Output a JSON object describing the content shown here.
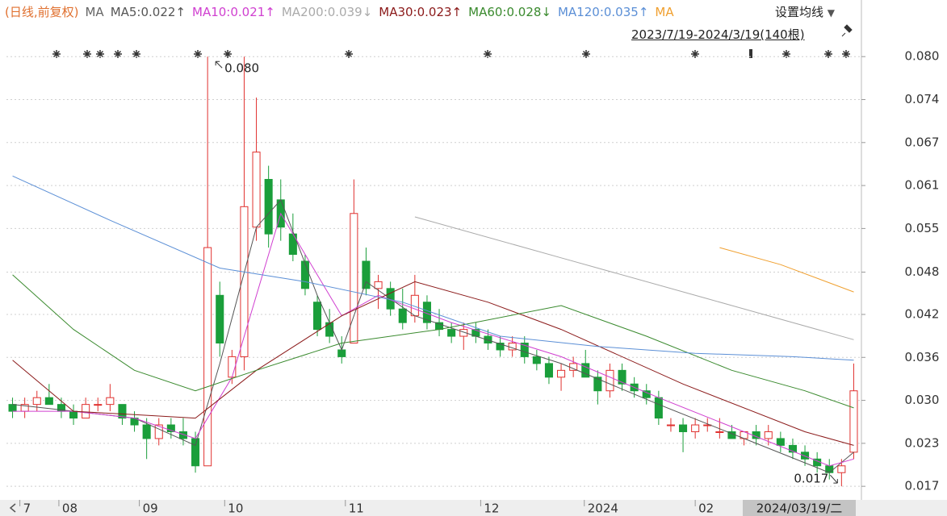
{
  "chart_data": {
    "type": "candlestick",
    "legend_prefix": "(日线,前复权)",
    "legend_ma": "MA",
    "button": "设置均线",
    "range_text": "2023/7/19-2024/3/19(140根)",
    "cursor_label": "2024/03/19/二",
    "up_color": "#e0312f",
    "down_color": "#1a9e3a",
    "grid": true,
    "xlim": [
      -0.5,
      69.5
    ],
    "xticks": [
      {
        "value": 0.6,
        "label": "7"
      },
      {
        "value": 3.8,
        "label": "08"
      },
      {
        "value": 10.4,
        "label": "09"
      },
      {
        "value": 17.4,
        "label": "10"
      },
      {
        "value": 27.3,
        "label": "11"
      },
      {
        "value": 38.4,
        "label": "12"
      },
      {
        "value": 46.9,
        "label": "2024"
      },
      {
        "value": 56,
        "label": "02"
      }
    ],
    "ylim": [
      0.0156,
      0.0883
    ],
    "yticks": [
      {
        "value": 0.08,
        "label": "0.080"
      },
      {
        "value": 0.0737,
        "label": "0.074"
      },
      {
        "value": 0.0674,
        "label": "0.067"
      },
      {
        "value": 0.0611,
        "label": "0.061"
      },
      {
        "value": 0.0548,
        "label": "0.055"
      },
      {
        "value": 0.0484,
        "label": "0.048"
      },
      {
        "value": 0.0422,
        "label": "0.042"
      },
      {
        "value": 0.0359,
        "label": "0.036"
      },
      {
        "value": 0.0296,
        "label": "0.030"
      },
      {
        "value": 0.0233,
        "label": "0.023"
      },
      {
        "value": 0.017,
        "label": "0.017"
      }
    ],
    "annotations": [
      {
        "text": "0.080",
        "x": 16,
        "y": 0.08
      },
      {
        "text": "0.017",
        "x": 68,
        "y": 0.017
      }
    ],
    "candles": [
      [
        0.029,
        0.03,
        0.027,
        0.028
      ],
      [
        0.028,
        0.03,
        0.027,
        0.029
      ],
      [
        0.029,
        0.031,
        0.028,
        0.03
      ],
      [
        0.03,
        0.032,
        0.029,
        0.029
      ],
      [
        0.029,
        0.03,
        0.027,
        0.028
      ],
      [
        0.028,
        0.029,
        0.026,
        0.027
      ],
      [
        0.027,
        0.03,
        0.027,
        0.029
      ],
      [
        0.029,
        0.03,
        0.028,
        0.029
      ],
      [
        0.029,
        0.032,
        0.028,
        0.03
      ],
      [
        0.029,
        0.029,
        0.026,
        0.027
      ],
      [
        0.027,
        0.028,
        0.025,
        0.026
      ],
      [
        0.026,
        0.027,
        0.021,
        0.024
      ],
      [
        0.024,
        0.027,
        0.023,
        0.026
      ],
      [
        0.026,
        0.027,
        0.024,
        0.025
      ],
      [
        0.025,
        0.027,
        0.023,
        0.024
      ],
      [
        0.024,
        0.025,
        0.019,
        0.02
      ],
      [
        0.02,
        0.08,
        0.02,
        0.052
      ],
      [
        0.045,
        0.047,
        0.036,
        0.038
      ],
      [
        0.033,
        0.037,
        0.032,
        0.036
      ],
      [
        0.036,
        0.08,
        0.034,
        0.058
      ],
      [
        0.055,
        0.074,
        0.053,
        0.066
      ],
      [
        0.062,
        0.064,
        0.052,
        0.054
      ],
      [
        0.059,
        0.062,
        0.053,
        0.055
      ],
      [
        0.054,
        0.057,
        0.05,
        0.051
      ],
      [
        0.05,
        0.051,
        0.045,
        0.046
      ],
      [
        0.044,
        0.045,
        0.039,
        0.04
      ],
      [
        0.041,
        0.043,
        0.038,
        0.039
      ],
      [
        0.037,
        0.039,
        0.035,
        0.036
      ],
      [
        0.038,
        0.062,
        0.038,
        0.057
      ],
      [
        0.05,
        0.052,
        0.045,
        0.046
      ],
      [
        0.046,
        0.048,
        0.043,
        0.047
      ],
      [
        0.046,
        0.047,
        0.042,
        0.043
      ],
      [
        0.043,
        0.046,
        0.04,
        0.041
      ],
      [
        0.042,
        0.048,
        0.041,
        0.045
      ],
      [
        0.044,
        0.045,
        0.04,
        0.041
      ],
      [
        0.041,
        0.043,
        0.039,
        0.04
      ],
      [
        0.04,
        0.041,
        0.038,
        0.039
      ],
      [
        0.039,
        0.041,
        0.037,
        0.04
      ],
      [
        0.04,
        0.041,
        0.038,
        0.039
      ],
      [
        0.039,
        0.04,
        0.037,
        0.038
      ],
      [
        0.038,
        0.039,
        0.036,
        0.037
      ],
      [
        0.037,
        0.039,
        0.036,
        0.038
      ],
      [
        0.038,
        0.039,
        0.035,
        0.036
      ],
      [
        0.036,
        0.037,
        0.034,
        0.035
      ],
      [
        0.035,
        0.036,
        0.032,
        0.033
      ],
      [
        0.033,
        0.035,
        0.031,
        0.034
      ],
      [
        0.034,
        0.036,
        0.033,
        0.035
      ],
      [
        0.035,
        0.037,
        0.033,
        0.033
      ],
      [
        0.033,
        0.034,
        0.029,
        0.031
      ],
      [
        0.031,
        0.035,
        0.03,
        0.034
      ],
      [
        0.034,
        0.035,
        0.031,
        0.032
      ],
      [
        0.032,
        0.033,
        0.03,
        0.031
      ],
      [
        0.031,
        0.032,
        0.029,
        0.03
      ],
      [
        0.03,
        0.031,
        0.026,
        0.027
      ],
      [
        0.026,
        0.027,
        0.025,
        0.026
      ],
      [
        0.026,
        0.027,
        0.022,
        0.025
      ],
      [
        0.025,
        0.027,
        0.024,
        0.026
      ],
      [
        0.026,
        0.027,
        0.025,
        0.026
      ],
      [
        0.025,
        0.027,
        0.024,
        0.025
      ],
      [
        0.025,
        0.026,
        0.024,
        0.024
      ],
      [
        0.024,
        0.025,
        0.023,
        0.025
      ],
      [
        0.025,
        0.026,
        0.023,
        0.024
      ],
      [
        0.024,
        0.026,
        0.023,
        0.025
      ],
      [
        0.024,
        0.025,
        0.022,
        0.023
      ],
      [
        0.023,
        0.024,
        0.021,
        0.022
      ],
      [
        0.022,
        0.023,
        0.02,
        0.021
      ],
      [
        0.021,
        0.022,
        0.019,
        0.02
      ],
      [
        0.02,
        0.021,
        0.018,
        0.019
      ],
      [
        0.019,
        0.021,
        0.017,
        0.02
      ],
      [
        0.022,
        0.035,
        0.021,
        0.031
      ]
    ],
    "series": [
      {
        "name": "MA5:0.022↑",
        "color": "#555555",
        "x": [
          0,
          5,
          10,
          15,
          17,
          20,
          22,
          25,
          27,
          29,
          33,
          38,
          45,
          53,
          60,
          67,
          69
        ],
        "values": [
          0.029,
          0.028,
          0.027,
          0.023,
          0.035,
          0.055,
          0.059,
          0.045,
          0.037,
          0.047,
          0.042,
          0.039,
          0.035,
          0.029,
          0.024,
          0.019,
          0.022
        ]
      },
      {
        "name": "MA10:0.021↑",
        "color": "#d040d0",
        "x": [
          0,
          5,
          10,
          15,
          18,
          22,
          25,
          27,
          30,
          36,
          45,
          53,
          60,
          67,
          69
        ],
        "values": [
          0.028,
          0.028,
          0.027,
          0.024,
          0.033,
          0.057,
          0.048,
          0.042,
          0.045,
          0.041,
          0.036,
          0.03,
          0.025,
          0.02,
          0.021
        ]
      },
      {
        "name": "MA200:0.039↓",
        "color": "#aaaaaa",
        "x": [
          33,
          45,
          57,
          69
        ],
        "values": [
          0.0565,
          0.0505,
          0.0445,
          0.0385
        ]
      },
      {
        "name": "MA30:0.023↑",
        "color": "#8b1a1a",
        "x": [
          0,
          5,
          10,
          15,
          20,
          27,
          33,
          39,
          45,
          55,
          65,
          69
        ],
        "values": [
          0.0355,
          0.028,
          0.0275,
          0.027,
          0.034,
          0.042,
          0.047,
          0.044,
          0.04,
          0.032,
          0.025,
          0.023
        ]
      },
      {
        "name": "MA60:0.028↓",
        "color": "#3a8a2e",
        "x": [
          0,
          5,
          10,
          15,
          20,
          27,
          35,
          45,
          52,
          59,
          65,
          69
        ],
        "values": [
          0.048,
          0.04,
          0.034,
          0.031,
          0.034,
          0.038,
          0.04,
          0.0435,
          0.039,
          0.034,
          0.031,
          0.0285
        ]
      },
      {
        "name": "MA120:0.035↑",
        "color": "#5b8fd6",
        "x": [
          0,
          8,
          17,
          24,
          32,
          40,
          48,
          56,
          64,
          69
        ],
        "values": [
          0.0625,
          0.056,
          0.049,
          0.047,
          0.044,
          0.039,
          0.0375,
          0.0365,
          0.036,
          0.0355
        ]
      },
      {
        "name": "MA",
        "color": "#f0a030",
        "x": [
          58,
          63,
          69
        ],
        "values": [
          0.052,
          0.0495,
          0.0455
        ]
      }
    ]
  }
}
